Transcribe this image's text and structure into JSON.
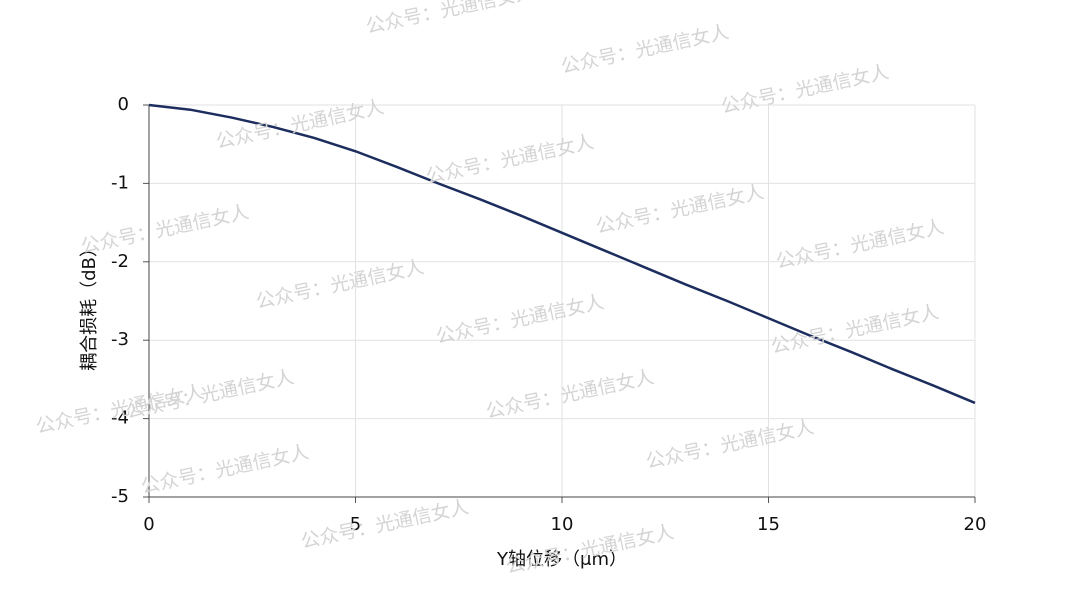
{
  "chart_data": {
    "type": "line",
    "xlabel": "Y轴位移（μm）",
    "ylabel": "耦合损耗（dB）",
    "watermark": "公众号：光通信女人",
    "x": [
      0,
      1,
      2,
      3,
      4,
      5,
      6,
      7,
      8,
      9,
      10,
      11,
      12,
      13,
      14,
      15,
      16,
      17,
      18,
      19,
      20
    ],
    "series": [
      {
        "color": "#1c2d5e",
        "values": [
          0,
          -0.06,
          -0.16,
          -0.28,
          -0.42,
          -0.59,
          -0.79,
          -1.0,
          -1.2,
          -1.41,
          -1.63,
          -1.85,
          -2.07,
          -2.29,
          -2.5,
          -2.72,
          -2.94,
          -3.15,
          -3.37,
          -3.58,
          -3.8
        ]
      }
    ],
    "xlim": [
      0,
      20
    ],
    "xticks": [
      0,
      5,
      10,
      15,
      20
    ],
    "ylim": [
      -5,
      0
    ],
    "yticks": [
      0,
      -1,
      -2,
      -3,
      -4,
      -5
    ],
    "grid": true
  }
}
